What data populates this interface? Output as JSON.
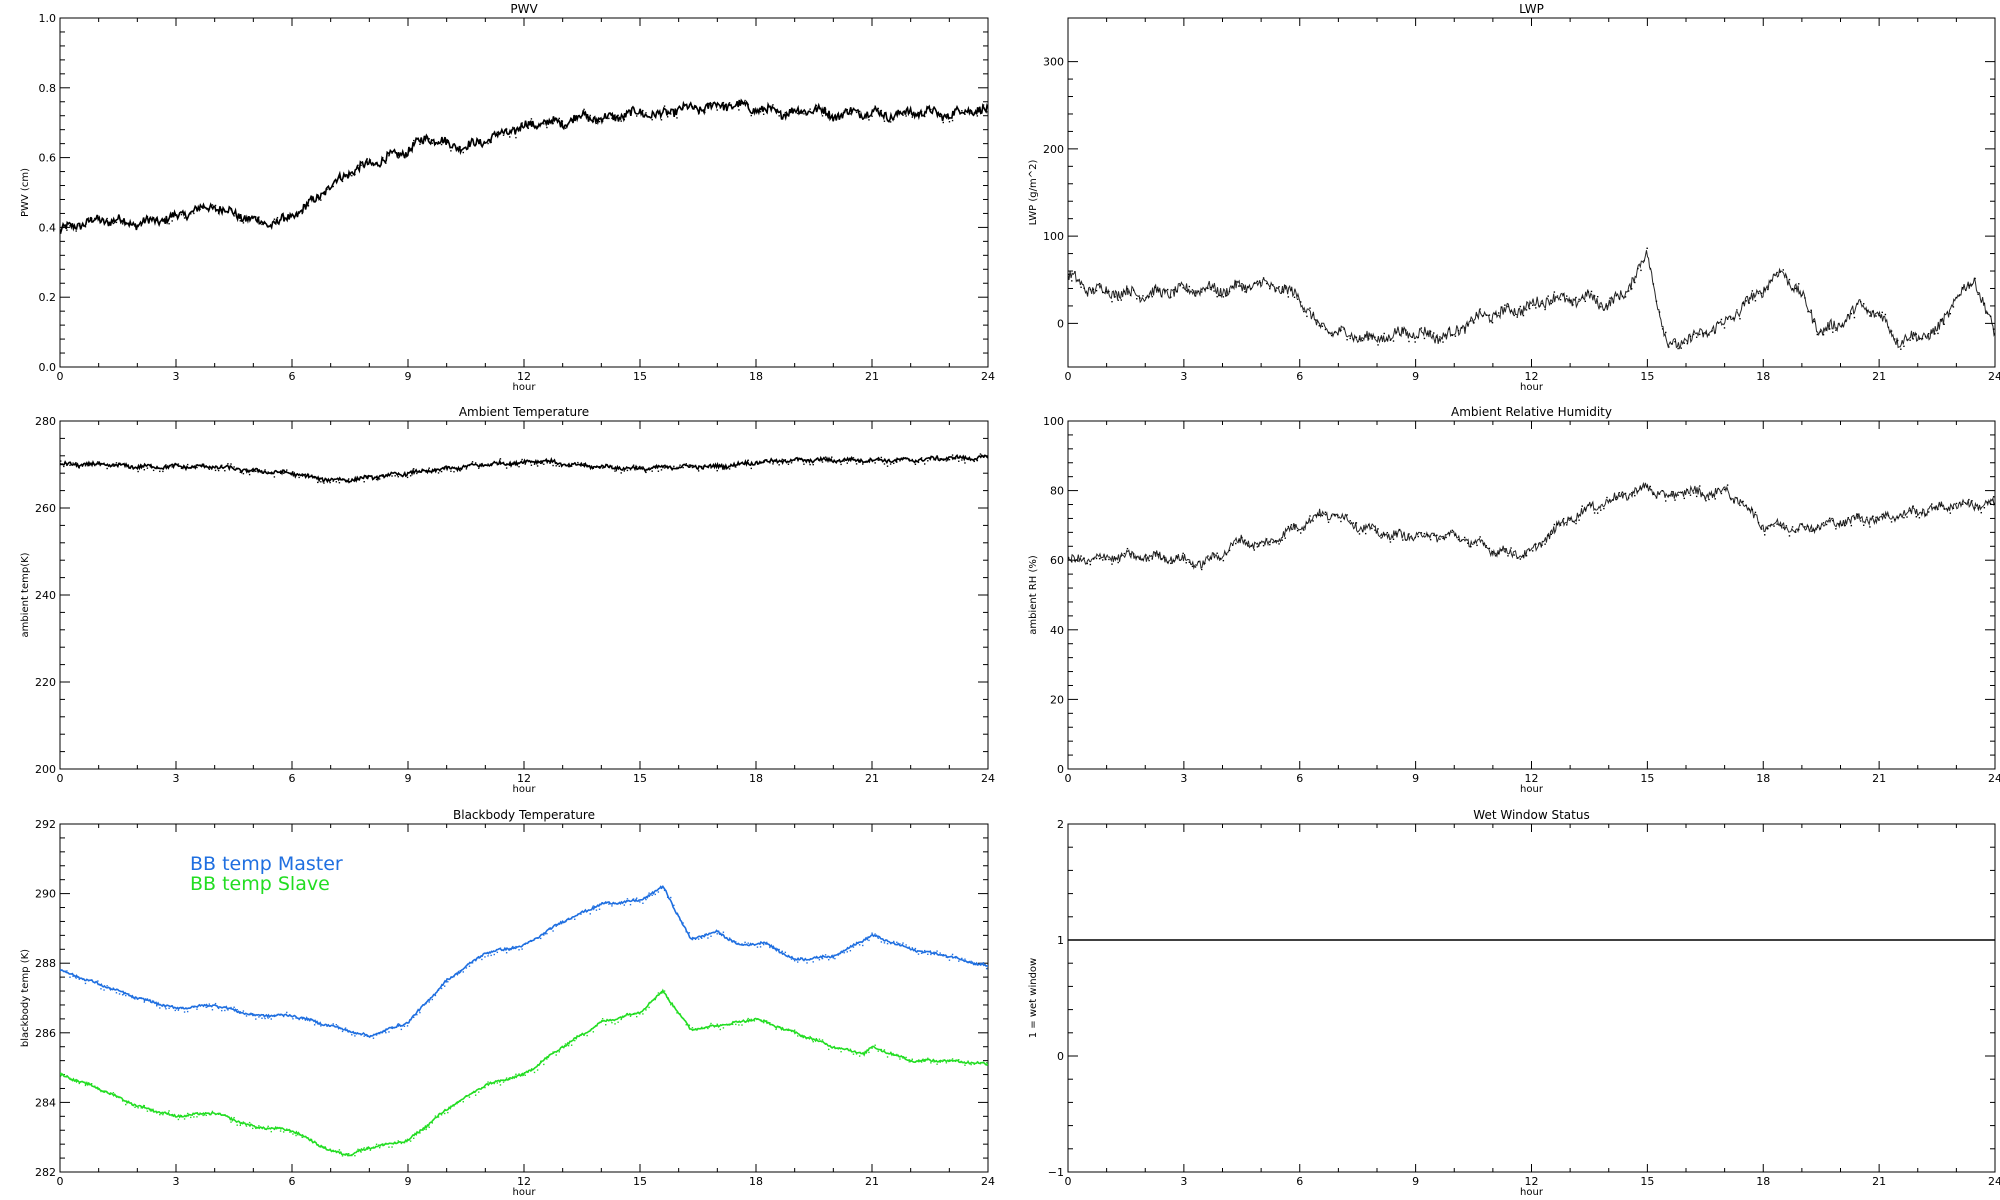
{
  "chart_data": [
    {
      "type": "line",
      "title": "PWV",
      "xlabel": "hour",
      "ylabel": "PWV (cm)",
      "xlim": [
        0,
        24
      ],
      "ylim": [
        0.0,
        1.0
      ],
      "xticks": [
        "0",
        "3",
        "6",
        "9",
        "12",
        "15",
        "18",
        "21",
        "24"
      ],
      "yticks": [
        "0.0",
        "0.2",
        "0.4",
        "0.6",
        "0.8",
        "1.0"
      ],
      "series": [
        {
          "color": "#000000",
          "noise": 0.012,
          "x": [
            0,
            0.5,
            1,
            1.5,
            2,
            2.5,
            3,
            3.5,
            4,
            4.5,
            5,
            5.5,
            6,
            6.5,
            7,
            7.5,
            8,
            8.5,
            9,
            9.5,
            10,
            10.5,
            11,
            11.5,
            12,
            12.5,
            13,
            13.5,
            14,
            14.5,
            15,
            15.5,
            16,
            16.5,
            17,
            17.5,
            18,
            18.5,
            19,
            19.5,
            20,
            20.5,
            21,
            21.5,
            22,
            22.5,
            23,
            23.5,
            24
          ],
          "y": [
            0.39,
            0.41,
            0.42,
            0.42,
            0.41,
            0.42,
            0.43,
            0.45,
            0.46,
            0.44,
            0.42,
            0.41,
            0.43,
            0.47,
            0.52,
            0.56,
            0.58,
            0.6,
            0.62,
            0.66,
            0.64,
            0.63,
            0.65,
            0.67,
            0.69,
            0.7,
            0.7,
            0.72,
            0.71,
            0.72,
            0.73,
            0.72,
            0.74,
            0.74,
            0.75,
            0.75,
            0.74,
            0.73,
            0.73,
            0.74,
            0.72,
            0.73,
            0.73,
            0.72,
            0.73,
            0.73,
            0.72,
            0.74,
            0.73
          ]
        }
      ]
    },
    {
      "type": "scatter",
      "title": "LWP",
      "xlabel": "hour",
      "ylabel": "LWP (g/m^2)",
      "xlim": [
        0,
        24
      ],
      "ylim": [
        -50,
        350
      ],
      "xticks": [
        "0",
        "3",
        "6",
        "9",
        "12",
        "15",
        "18",
        "21",
        "24"
      ],
      "yticks": [
        "0",
        "100",
        "200",
        "300"
      ],
      "series": [
        {
          "color": "#000000",
          "noise": 6,
          "x": [
            0,
            0.5,
            1,
            1.5,
            2,
            2.5,
            3,
            3.5,
            4,
            4.5,
            5,
            5.5,
            6,
            6.5,
            7,
            7.5,
            8,
            8.5,
            9,
            9.5,
            10,
            10.5,
            11,
            11.5,
            12,
            12.5,
            13,
            13.5,
            14,
            14.5,
            15,
            15.5,
            16,
            16.5,
            17,
            17.5,
            18,
            18.5,
            19,
            19.5,
            20,
            20.5,
            21,
            21.5,
            22,
            22.5,
            23,
            23.5,
            24
          ],
          "y": [
            55,
            40,
            37,
            35,
            33,
            36,
            38,
            40,
            38,
            42,
            45,
            40,
            30,
            -5,
            -10,
            -15,
            -18,
            -12,
            -10,
            -15,
            -12,
            5,
            10,
            15,
            20,
            30,
            25,
            30,
            20,
            40,
            80,
            -25,
            -20,
            -10,
            0,
            20,
            40,
            60,
            30,
            -10,
            0,
            20,
            10,
            -20,
            -15,
            -10,
            30,
            50,
            -15
          ]
        }
      ]
    },
    {
      "type": "line",
      "title": "Ambient Temperature",
      "xlabel": "hour",
      "ylabel": "ambient temp(K)",
      "xlim": [
        0,
        24
      ],
      "ylim": [
        200,
        280
      ],
      "xticks": [
        "0",
        "3",
        "6",
        "9",
        "12",
        "15",
        "18",
        "21",
        "24"
      ],
      "yticks": [
        "200",
        "220",
        "240",
        "260",
        "280"
      ],
      "series": [
        {
          "color": "#000000",
          "noise": 0.4,
          "x": [
            0,
            1,
            2,
            3,
            4,
            5,
            6,
            6.5,
            7,
            7.5,
            8,
            9,
            10,
            11,
            12,
            12.5,
            13,
            14,
            15,
            16,
            17,
            18,
            19,
            20,
            21,
            22,
            23,
            24
          ],
          "y": [
            270,
            270,
            269.5,
            269.5,
            269.5,
            268.5,
            268,
            267,
            266.5,
            266.5,
            267,
            268,
            269,
            270,
            270.5,
            271,
            270,
            269.5,
            269,
            269.5,
            269.5,
            270.5,
            271,
            271,
            271,
            271,
            271.5,
            271.5
          ]
        }
      ]
    },
    {
      "type": "scatter",
      "title": "Ambient Relative Humidity",
      "xlabel": "hour",
      "ylabel": "ambient RH (%)",
      "xlim": [
        0,
        24
      ],
      "ylim": [
        0,
        100
      ],
      "xticks": [
        "0",
        "3",
        "6",
        "9",
        "12",
        "15",
        "18",
        "21",
        "24"
      ],
      "yticks": [
        "0",
        "20",
        "40",
        "60",
        "80",
        "100"
      ],
      "series": [
        {
          "color": "#000000",
          "noise": 1.2,
          "x": [
            0,
            0.5,
            1,
            1.5,
            2,
            2.5,
            3,
            3.5,
            4,
            4.5,
            5,
            5.5,
            6,
            6.5,
            7,
            7.5,
            8,
            8.5,
            9,
            9.5,
            10,
            10.5,
            11,
            11.5,
            12,
            12.5,
            13,
            13.5,
            14,
            14.5,
            15,
            15.5,
            16,
            16.5,
            17,
            17.5,
            18,
            18.5,
            19,
            19.5,
            20,
            20.5,
            21,
            21.5,
            22,
            22.5,
            23,
            23.5,
            24
          ],
          "y": [
            60,
            60,
            61,
            61,
            61,
            61,
            60,
            59,
            62,
            66,
            64,
            67,
            70,
            73,
            73,
            70,
            68,
            67,
            67,
            67,
            67,
            65,
            63,
            62,
            62,
            68,
            72,
            75,
            77,
            79,
            81,
            78,
            80,
            79,
            80,
            76,
            70,
            70,
            69,
            70,
            71,
            72,
            72,
            73,
            74,
            75,
            76,
            76,
            76
          ]
        }
      ]
    },
    {
      "type": "line",
      "title": "Blackbody Temperature",
      "xlabel": "hour",
      "ylabel": "blackbody temp (K)",
      "xlim": [
        0,
        24
      ],
      "ylim": [
        282,
        292
      ],
      "xticks": [
        "0",
        "3",
        "6",
        "9",
        "12",
        "15",
        "18",
        "21",
        "24"
      ],
      "yticks": [
        "282",
        "284",
        "286",
        "288",
        "290",
        "292"
      ],
      "series": [
        {
          "name": "BB temp Master",
          "color": "#1f6fe0",
          "noise": 0.03,
          "x": [
            0,
            1,
            2,
            3,
            4,
            5,
            6,
            7,
            8,
            9,
            10,
            11,
            12,
            13,
            14,
            15,
            15.6,
            16.3,
            17,
            17.6,
            18.2,
            19,
            20,
            21,
            22,
            23,
            24
          ],
          "y": [
            287.8,
            287.4,
            287.0,
            286.7,
            286.8,
            286.5,
            286.5,
            286.2,
            285.9,
            286.3,
            287.5,
            288.3,
            288.5,
            289.2,
            289.7,
            289.8,
            290.2,
            288.7,
            288.9,
            288.5,
            288.6,
            288.1,
            288.2,
            288.8,
            288.4,
            288.2,
            287.9
          ]
        },
        {
          "name": "BB temp Slave",
          "color": "#22dd22",
          "noise": 0.03,
          "x": [
            0,
            1,
            2,
            3,
            4,
            5,
            6,
            7,
            7.5,
            8,
            9,
            10,
            11,
            12,
            13,
            14,
            15,
            15.6,
            16.3,
            17,
            18,
            19,
            20,
            20.8,
            21,
            22,
            23,
            24
          ],
          "y": [
            284.8,
            284.4,
            283.9,
            283.6,
            283.7,
            283.3,
            283.2,
            282.6,
            282.5,
            282.7,
            282.9,
            283.8,
            284.5,
            284.8,
            285.6,
            286.3,
            286.6,
            287.2,
            286.1,
            286.2,
            286.4,
            286.0,
            285.6,
            285.4,
            285.6,
            285.2,
            285.2,
            285.1
          ]
        }
      ]
    },
    {
      "type": "line",
      "title": "Wet Window Status",
      "xlabel": "hour",
      "ylabel": "1 = wet window",
      "xlim": [
        0,
        24
      ],
      "ylim": [
        -1,
        2
      ],
      "xticks": [
        "0",
        "3",
        "6",
        "9",
        "12",
        "15",
        "18",
        "21",
        "24"
      ],
      "yticks": [
        "−1",
        "0",
        "1",
        "2"
      ],
      "series": [
        {
          "color": "#000000",
          "noise": 0,
          "x": [
            0,
            24
          ],
          "y": [
            1,
            1
          ]
        }
      ]
    }
  ]
}
